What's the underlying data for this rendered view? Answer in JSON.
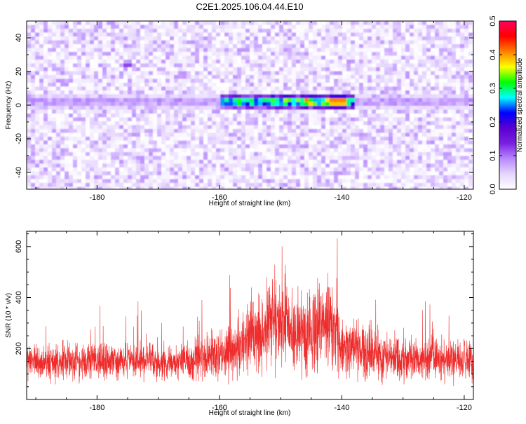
{
  "title": "C2E1.2025.106.04.44.E10",
  "colors": {
    "background": "#ffffff",
    "snr_line": "#ee2c2c",
    "colormap": [
      "#ffffff",
      "#e6d6ff",
      "#b888ff",
      "#7a20e0",
      "#5a00d0",
      "#0000ff",
      "#00ffff",
      "#00ff00",
      "#ffff00",
      "#ff8000",
      "#ff0000",
      "#ff0060"
    ]
  },
  "chart_data": [
    {
      "type": "heatmap",
      "title": "C2E1.2025.106.04.44.E10",
      "xlabel": "Height of straight line (km)",
      "ylabel": "Frequency (Hz)",
      "xlim": [
        -191.5,
        -118.5
      ],
      "ylim": [
        -50,
        50
      ],
      "xticks": [
        -180,
        -160,
        -140,
        -120
      ],
      "yticks": [
        -40,
        -20,
        0,
        20,
        40
      ],
      "grid": false,
      "colorbar": {
        "label": "Normalized spectral amplitude",
        "range": [
          0.0,
          0.5
        ],
        "ticks": [
          0.0,
          0.1,
          0.2,
          0.3,
          0.4,
          0.5
        ]
      },
      "features": [
        {
          "kind": "band",
          "frequency": 2,
          "x_range": [
            -191,
            -119
          ],
          "peak_x": -140.5,
          "peak_value": 0.5
        },
        {
          "kind": "spot",
          "x": -175,
          "frequency": 24,
          "value": 0.15
        },
        {
          "kind": "spot",
          "x": -166,
          "frequency": 18,
          "value": 0.12
        }
      ]
    },
    {
      "type": "line",
      "xlabel": "Height of straight line (km)",
      "ylabel": "SNR (10 * v/v)",
      "xlim": [
        -191.5,
        -118.5
      ],
      "ylim": [
        0,
        660
      ],
      "xticks": [
        -180,
        -160,
        -140,
        -120
      ],
      "yticks": [
        200,
        400,
        600
      ],
      "grid": false,
      "series": [
        {
          "color": "#ee2c2c",
          "x": [
            -191,
            -188,
            -185,
            -182,
            -180,
            -177,
            -174,
            -171,
            -168,
            -165,
            -162,
            -160,
            -158,
            -156,
            -155,
            -153,
            -151,
            -150,
            -148,
            -146,
            -144,
            -143,
            -142,
            -140,
            -137,
            -134,
            -131,
            -128,
            -125,
            -122,
            -119
          ],
          "y": [
            150,
            140,
            150,
            145,
            150,
            150,
            150,
            150,
            145,
            150,
            160,
            180,
            200,
            230,
            250,
            260,
            330,
            300,
            260,
            250,
            280,
            320,
            280,
            220,
            190,
            170,
            160,
            160,
            155,
            160,
            150
          ],
          "spread": [
            130,
            120,
            130,
            125,
            130,
            125,
            125,
            130,
            130,
            140,
            160,
            180,
            220,
            260,
            280,
            290,
            330,
            300,
            280,
            280,
            300,
            320,
            300,
            240,
            200,
            170,
            160,
            150,
            150,
            150,
            140
          ]
        }
      ]
    }
  ]
}
